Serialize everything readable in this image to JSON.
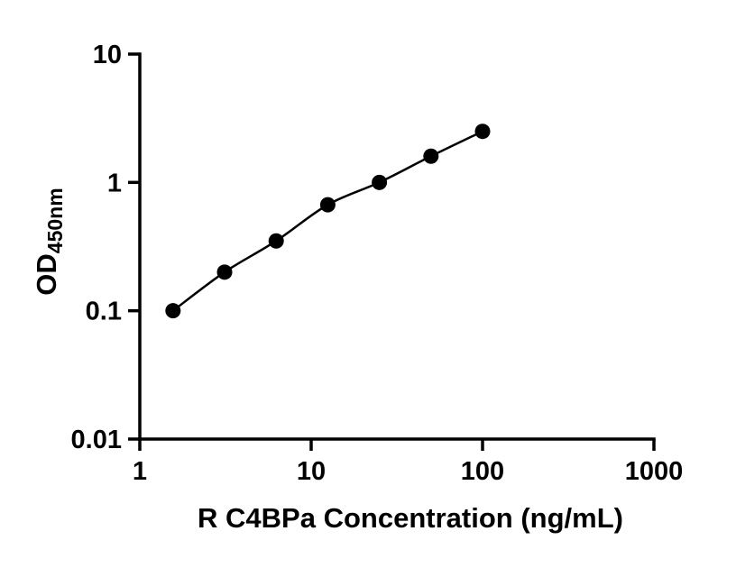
{
  "chart_data": {
    "type": "scatter",
    "title": "",
    "xlabel": "R C4BPa Concentration (ng/mL)",
    "ylabel_main": "OD",
    "ylabel_sub": "450nm",
    "xscale": "log",
    "yscale": "log",
    "xlim": [
      1,
      1000
    ],
    "ylim": [
      0.01,
      10
    ],
    "x": [
      1.5625,
      3.125,
      6.25,
      12.5,
      25,
      50,
      100
    ],
    "y": [
      0.1,
      0.2,
      0.35,
      0.67,
      1.0,
      1.6,
      2.5
    ],
    "x_ticks": [
      {
        "value": 1,
        "label": "1"
      },
      {
        "value": 10,
        "label": "10"
      },
      {
        "value": 100,
        "label": "100"
      },
      {
        "value": 1000,
        "label": "1000"
      }
    ],
    "y_ticks": [
      {
        "value": 10,
        "label": "10"
      },
      {
        "value": 1,
        "label": "1"
      },
      {
        "value": 0.1,
        "label": "0.1"
      },
      {
        "value": 0.01,
        "label": "0.01"
      }
    ],
    "grid": false,
    "legend": false,
    "has_fit_line": true,
    "marker_color": "#000000",
    "line_color": "#000000",
    "axis_color": "#000000"
  }
}
